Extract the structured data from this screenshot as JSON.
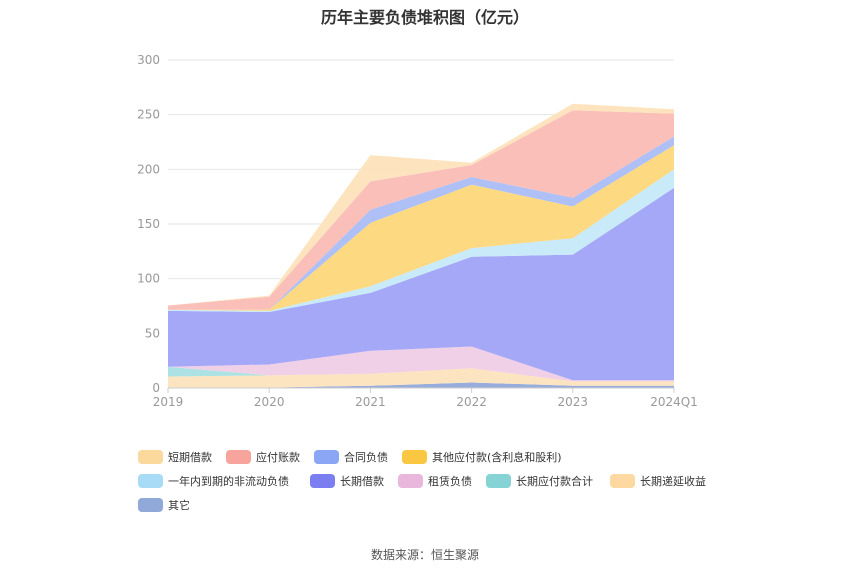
{
  "title": "历年主要负债堆积图（亿元）",
  "source": "数据来源：恒生聚源",
  "chart_data": {
    "type": "area",
    "stacked": true,
    "title": "历年主要负债堆积图（亿元）",
    "categories": [
      "2019",
      "2020",
      "2021",
      "2022",
      "2023",
      "2024Q1"
    ],
    "ylim": [
      0,
      300
    ],
    "yticks": [
      "0",
      "50",
      "100",
      "150",
      "200",
      "250",
      "300"
    ],
    "grid": true,
    "legend_position": "bottom",
    "series": [
      {
        "name": "其它",
        "color": "#91a9d9",
        "fill": "#91a9d9",
        "values": [
          0.5,
          0.5,
          2,
          5,
          2,
          2
        ]
      },
      {
        "name": "长期递延收益",
        "color": "#fdd9a1",
        "fill": "#fde3bd",
        "values": [
          10,
          11,
          11,
          13,
          4,
          4
        ]
      },
      {
        "name": "长期应付款合计",
        "color": "#85d3d4",
        "fill": "#a8e0e1",
        "values": [
          9,
          0,
          0,
          0,
          0,
          0
        ]
      },
      {
        "name": "租赁负债",
        "color": "#e8b7db",
        "fill": "#efcde6",
        "values": [
          0,
          10,
          21,
          20,
          1,
          1
        ]
      },
      {
        "name": "长期借款",
        "color": "#7b7ef0",
        "fill": "#a0a2f7",
        "values": [
          51,
          48,
          53,
          82,
          115,
          176
        ]
      },
      {
        "name": "一年内到期的非流动负债",
        "color": "#a8dcf6",
        "fill": "#c6e9f9",
        "values": [
          1,
          1,
          6,
          8,
          15,
          17
        ]
      },
      {
        "name": "其他应付款(含利息和股利)",
        "color": "#f9c742",
        "fill": "#fdd77a",
        "values": [
          0,
          1,
          58,
          58,
          29,
          22
        ]
      },
      {
        "name": "合同负债",
        "color": "#8aa6f4",
        "fill": "#aabdf6",
        "values": [
          0,
          0,
          12,
          7,
          8,
          8
        ]
      },
      {
        "name": "应付账款",
        "color": "#f6a49c",
        "fill": "#fbbcb5",
        "values": [
          4,
          12,
          26,
          11,
          80,
          21
        ]
      },
      {
        "name": "短期借款",
        "color": "#fbd89b",
        "fill": "#fde3bb",
        "values": [
          0,
          1,
          24,
          2,
          6,
          4
        ]
      }
    ]
  },
  "legend_order": [
    "短期借款",
    "应付账款",
    "合同负债",
    "其他应付款(含利息和股利)",
    "一年内到期的非流动负债",
    "长期借款",
    "租赁负债",
    "长期应付款合计",
    "长期递延收益",
    "其它"
  ]
}
